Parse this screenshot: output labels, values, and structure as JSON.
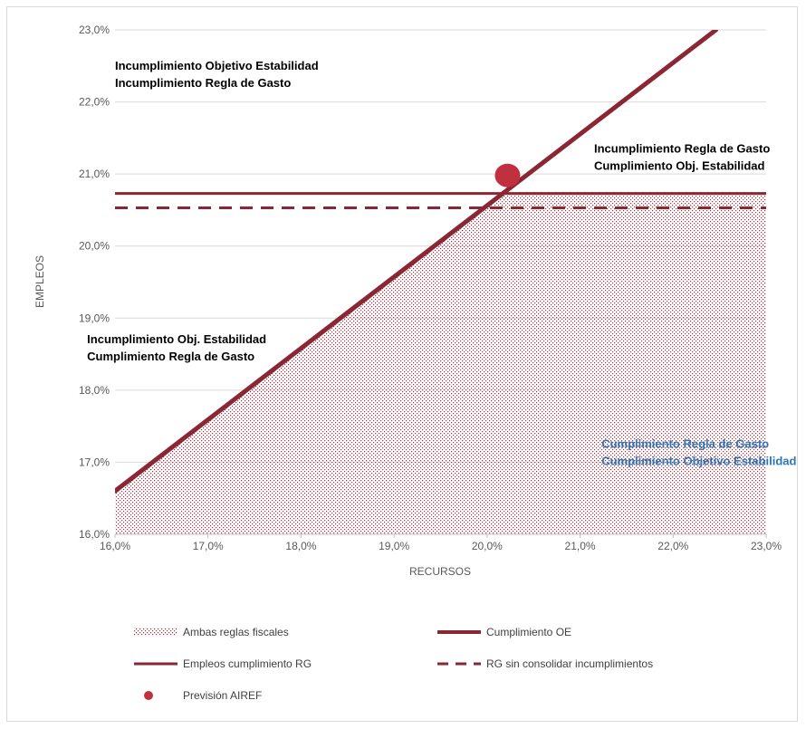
{
  "chart_data": {
    "type": "line",
    "xlabel": "RECURSOS",
    "ylabel": "EMPLEOS",
    "xlim": [
      16,
      23
    ],
    "ylim": [
      16,
      23
    ],
    "x_ticks": [
      "16,0%",
      "17,0%",
      "18,0%",
      "19,0%",
      "20,0%",
      "21,0%",
      "22,0%",
      "23,0%"
    ],
    "y_ticks": [
      "16,0%",
      "17,0%",
      "18,0%",
      "19,0%",
      "20,0%",
      "21,0%",
      "22,0%",
      "23,0%"
    ],
    "grid": "horizontal",
    "series": [
      {
        "name": "Cumplimiento OE",
        "style": "line-thick",
        "color": "#8b2635",
        "points": [
          [
            16.0,
            16.6
          ],
          [
            22.46,
            23.0
          ]
        ]
      },
      {
        "name": "Empleos cumplimiento RG",
        "style": "line",
        "color": "#8b2635",
        "points": [
          [
            16.0,
            20.73
          ],
          [
            23.0,
            20.73
          ]
        ]
      },
      {
        "name": "RG sin consolidar incumplimientos",
        "style": "dashed",
        "color": "#8b2635",
        "points": [
          [
            16.0,
            20.53
          ],
          [
            23.0,
            20.53
          ]
        ]
      },
      {
        "name": "Previsión AIREF",
        "style": "marker",
        "color": "#c0303f",
        "points": [
          [
            20.22,
            20.98
          ]
        ]
      },
      {
        "name": "Ambas reglas fiscales",
        "style": "dotted-area",
        "color": "#9b3040",
        "polygon": [
          [
            16.0,
            16.0
          ],
          [
            16.0,
            16.6
          ],
          [
            20.13,
            20.73
          ],
          [
            23.0,
            20.73
          ],
          [
            23.0,
            16.0
          ]
        ]
      }
    ],
    "annotations": [
      {
        "lines": [
          "Incumplimiento  Objetivo Estabilidad",
          "Incumplimiento  Regla de Gasto"
        ],
        "color": "#000000",
        "x": 16.0,
        "y": 22.45
      },
      {
        "lines": [
          "Incumplimiento  Regla de Gasto",
          "Cumplimiento Obj. Estabilidad"
        ],
        "color": "#000000",
        "x": 21.15,
        "y": 21.3
      },
      {
        "lines": [
          "Incumplimiento  Obj. Estabilidad",
          "Cumplimiento Regla de Gasto"
        ],
        "color": "#000000",
        "x": 15.7,
        "y": 18.65
      },
      {
        "lines": [
          "Cumplimiento Regla de Gasto",
          "Cumplimiento Objetivo Estabilidad"
        ],
        "color": "#2e75b6",
        "x": 21.23,
        "y": 17.2
      }
    ],
    "legend": {
      "position": "bottom",
      "items": [
        {
          "label": "Ambas reglas fiscales",
          "symbol": "dotted-area"
        },
        {
          "label": "Cumplimiento OE",
          "symbol": "line-thick"
        },
        {
          "label": "Empleos cumplimiento RG",
          "symbol": "line"
        },
        {
          "label": "RG sin consolidar incumplimientos",
          "symbol": "dashed"
        },
        {
          "label": "Previsión AIREF",
          "symbol": "marker"
        }
      ]
    }
  }
}
